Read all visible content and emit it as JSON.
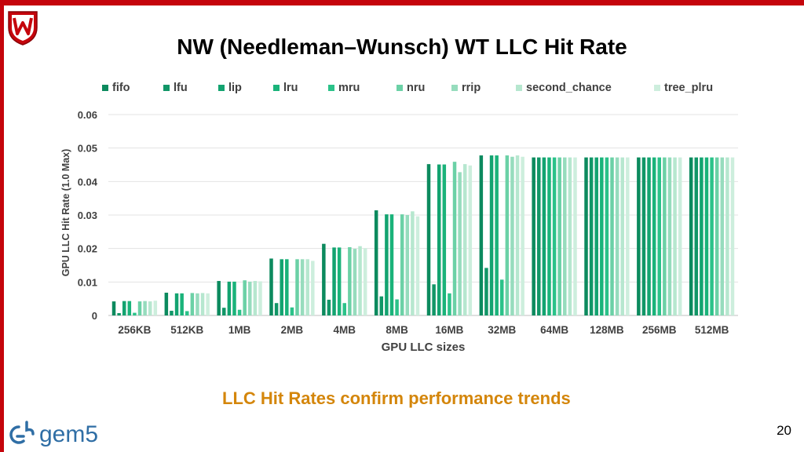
{
  "slide": {
    "title": "NW (Needleman–Wunsch) WT LLC Hit Rate",
    "subtitle": "LLC Hit Rates confirm performance trends",
    "page_number": "20",
    "logo_text": "gem5",
    "accent_color": "#c5050c",
    "subtitle_color": "#d4860b"
  },
  "chart_data": {
    "type": "bar",
    "title": "",
    "xlabel": "GPU LLC sizes",
    "ylabel": "GPU LLC Hit Rate (1.0 Max)",
    "ylim": [
      0,
      0.06
    ],
    "yticks": [
      0,
      0.01,
      0.02,
      0.03,
      0.04,
      0.05,
      0.06
    ],
    "ytick_labels": [
      "0",
      "0.01",
      "0.02",
      "0.03",
      "0.04",
      "0.05",
      "0.06"
    ],
    "grid": true,
    "legend_position": "top",
    "categories": [
      "256KB",
      "512KB",
      "1MB",
      "2MB",
      "4MB",
      "8MB",
      "16MB",
      "32MB",
      "64MB",
      "128MB",
      "256MB",
      "512MB"
    ],
    "series": [
      {
        "name": "fifo",
        "color": "#0c8a5e",
        "values": [
          0.0042,
          0.0068,
          0.0103,
          0.017,
          0.0214,
          0.0314,
          0.0452,
          0.0478,
          0.0472,
          0.0472,
          0.0472,
          0.0472
        ]
      },
      {
        "name": "lfu",
        "color": "#119667",
        "values": [
          0.0007,
          0.0014,
          0.0023,
          0.0037,
          0.0047,
          0.0057,
          0.0093,
          0.0142,
          0.0472,
          0.0472,
          0.0472,
          0.0472
        ]
      },
      {
        "name": "lip",
        "color": "#13a370",
        "values": [
          0.0043,
          0.0066,
          0.0101,
          0.0168,
          0.0203,
          0.0302,
          0.0451,
          0.0478,
          0.0472,
          0.0472,
          0.0472,
          0.0472
        ]
      },
      {
        "name": "lru",
        "color": "#1ab37a",
        "values": [
          0.0043,
          0.0066,
          0.0101,
          0.0168,
          0.0203,
          0.0302,
          0.0451,
          0.0478,
          0.0472,
          0.0472,
          0.0472,
          0.0472
        ]
      },
      {
        "name": "mru",
        "color": "#2bc289",
        "values": [
          0.0008,
          0.0013,
          0.0017,
          0.0024,
          0.0037,
          0.0048,
          0.0066,
          0.0107,
          0.0472,
          0.0472,
          0.0472,
          0.0472
        ]
      },
      {
        "name": "nru",
        "color": "#6bd1a6",
        "values": [
          0.0042,
          0.0067,
          0.0105,
          0.0168,
          0.0204,
          0.0302,
          0.0459,
          0.0478,
          0.0472,
          0.0472,
          0.0472,
          0.0472
        ]
      },
      {
        "name": "rrip",
        "color": "#96dcbd",
        "values": [
          0.0043,
          0.0066,
          0.0101,
          0.0168,
          0.0199,
          0.03,
          0.0428,
          0.0474,
          0.0472,
          0.0472,
          0.0472,
          0.0472
        ]
      },
      {
        "name": "second_chance",
        "color": "#b6e7cf",
        "values": [
          0.0042,
          0.0067,
          0.0103,
          0.0168,
          0.0207,
          0.0311,
          0.0452,
          0.0478,
          0.0472,
          0.0472,
          0.0472,
          0.0472
        ]
      },
      {
        "name": "tree_plru",
        "color": "#cdeedd",
        "values": [
          0.0044,
          0.0066,
          0.0102,
          0.0163,
          0.0201,
          0.0296,
          0.0448,
          0.0474,
          0.0472,
          0.0472,
          0.0472,
          0.0472
        ]
      }
    ]
  }
}
